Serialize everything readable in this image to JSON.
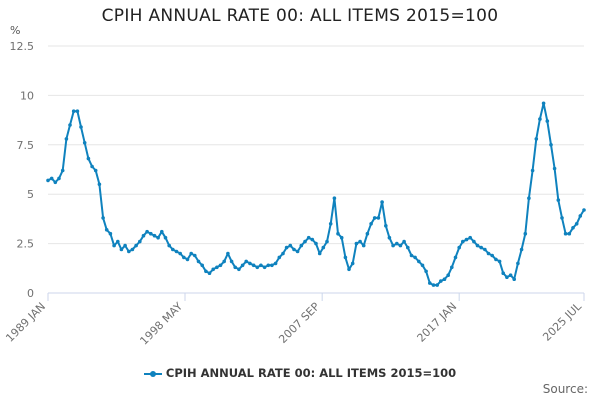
{
  "colors": {
    "series": "#0f82be",
    "grid": "#e6e6e6",
    "axis": "#ccd6eb"
  },
  "source_label": "Source:",
  "chart_data": {
    "type": "line",
    "title": "CPIH ANNUAL RATE 00: ALL ITEMS 2015=100",
    "ylabel": "%",
    "ylim": [
      0,
      12.5
    ],
    "yticks": [
      0,
      2.5,
      5,
      7.5,
      10,
      12.5
    ],
    "ytick_labels": [
      "0",
      "2.5",
      "5",
      "7.5",
      "10",
      "12.5"
    ],
    "xlim": [
      1989.0,
      2025.5
    ],
    "xticks": [
      {
        "value": 1989.0,
        "label": "1989 JAN"
      },
      {
        "value": 1998.33,
        "label": "1998 MAY"
      },
      {
        "value": 2007.67,
        "label": "2007 SEP"
      },
      {
        "value": 2017.0,
        "label": "2017 JAN"
      },
      {
        "value": 2025.5,
        "label": "2025 JUL"
      }
    ],
    "series": [
      {
        "name": "CPIH ANNUAL RATE 00: ALL ITEMS 2015=100",
        "x": [
          1989.0,
          1989.25,
          1989.5,
          1989.75,
          1990.0,
          1990.25,
          1990.5,
          1990.75,
          1991.0,
          1991.25,
          1991.5,
          1991.75,
          1992.0,
          1992.25,
          1992.5,
          1992.75,
          1993.0,
          1993.25,
          1993.5,
          1993.75,
          1994.0,
          1994.25,
          1994.5,
          1994.75,
          1995.0,
          1995.25,
          1995.5,
          1995.75,
          1996.0,
          1996.25,
          1996.5,
          1996.75,
          1997.0,
          1997.25,
          1997.5,
          1997.75,
          1998.0,
          1998.25,
          1998.5,
          1998.75,
          1999.0,
          1999.25,
          1999.5,
          1999.75,
          2000.0,
          2000.25,
          2000.5,
          2000.75,
          2001.0,
          2001.25,
          2001.5,
          2001.75,
          2002.0,
          2002.25,
          2002.5,
          2002.75,
          2003.0,
          2003.25,
          2003.5,
          2003.75,
          2004.0,
          2004.25,
          2004.5,
          2004.75,
          2005.0,
          2005.25,
          2005.5,
          2005.75,
          2006.0,
          2006.25,
          2006.5,
          2006.75,
          2007.0,
          2007.25,
          2007.5,
          2007.75,
          2008.0,
          2008.25,
          2008.5,
          2008.75,
          2009.0,
          2009.25,
          2009.5,
          2009.75,
          2010.0,
          2010.25,
          2010.5,
          2010.75,
          2011.0,
          2011.25,
          2011.5,
          2011.75,
          2012.0,
          2012.25,
          2012.5,
          2012.75,
          2013.0,
          2013.25,
          2013.5,
          2013.75,
          2014.0,
          2014.25,
          2014.5,
          2014.75,
          2015.0,
          2015.25,
          2015.5,
          2015.75,
          2016.0,
          2016.25,
          2016.5,
          2016.75,
          2017.0,
          2017.25,
          2017.5,
          2017.75,
          2018.0,
          2018.25,
          2018.5,
          2018.75,
          2019.0,
          2019.25,
          2019.5,
          2019.75,
          2020.0,
          2020.25,
          2020.5,
          2020.75,
          2021.0,
          2021.25,
          2021.5,
          2021.75,
          2022.0,
          2022.25,
          2022.5,
          2022.75,
          2023.0,
          2023.25,
          2023.5,
          2023.75,
          2024.0,
          2024.25,
          2024.5,
          2024.75,
          2025.0,
          2025.25,
          2025.5
        ],
        "values": [
          5.7,
          5.8,
          5.6,
          5.8,
          6.2,
          7.8,
          8.5,
          9.2,
          9.2,
          8.4,
          7.6,
          6.8,
          6.4,
          6.2,
          5.5,
          3.8,
          3.2,
          3.0,
          2.4,
          2.6,
          2.2,
          2.4,
          2.1,
          2.2,
          2.4,
          2.6,
          2.9,
          3.1,
          3.0,
          2.9,
          2.8,
          3.1,
          2.8,
          2.4,
          2.2,
          2.1,
          2.0,
          1.8,
          1.7,
          2.0,
          1.9,
          1.6,
          1.4,
          1.1,
          1.0,
          1.2,
          1.3,
          1.4,
          1.6,
          2.0,
          1.6,
          1.3,
          1.2,
          1.4,
          1.6,
          1.5,
          1.4,
          1.3,
          1.4,
          1.3,
          1.4,
          1.4,
          1.5,
          1.8,
          2.0,
          2.3,
          2.4,
          2.2,
          2.1,
          2.4,
          2.6,
          2.8,
          2.7,
          2.5,
          2.0,
          2.3,
          2.6,
          3.5,
          4.8,
          3.0,
          2.8,
          1.8,
          1.2,
          1.5,
          2.5,
          2.6,
          2.4,
          3.0,
          3.5,
          3.8,
          3.8,
          4.6,
          3.4,
          2.8,
          2.4,
          2.5,
          2.4,
          2.6,
          2.3,
          1.9,
          1.8,
          1.6,
          1.4,
          1.1,
          0.5,
          0.4,
          0.4,
          0.6,
          0.7,
          0.9,
          1.3,
          1.8,
          2.3,
          2.6,
          2.7,
          2.8,
          2.6,
          2.4,
          2.3,
          2.2,
          2.0,
          1.9,
          1.7,
          1.6,
          1.0,
          0.8,
          0.9,
          0.7,
          1.5,
          2.2,
          3.0,
          4.8,
          6.2,
          7.8,
          8.8,
          9.6,
          8.7,
          7.5,
          6.3,
          4.7,
          3.8,
          3.0,
          3.0,
          3.3,
          3.5,
          3.9,
          4.2
        ]
      }
    ]
  }
}
